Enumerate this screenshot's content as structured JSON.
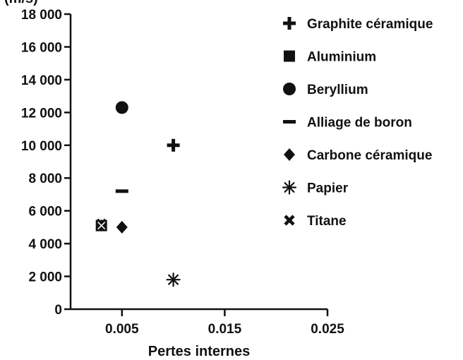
{
  "chart_data": {
    "type": "scatter",
    "title": "",
    "ylabel_fragment": "(m/s)",
    "xlabel": "Pertes internes",
    "xlim": [
      0,
      0.025
    ],
    "ylim": [
      0,
      18000
    ],
    "x_ticks": [
      0.005,
      0.015,
      0.025
    ],
    "x_tick_labels": [
      "0.005",
      "0.015",
      "0.025"
    ],
    "y_ticks": [
      0,
      2000,
      4000,
      6000,
      8000,
      10000,
      12000,
      14000,
      16000,
      18000
    ],
    "y_tick_labels": [
      "0",
      "2 000",
      "4 000",
      "6 000",
      "8 000",
      "10 000",
      "12 000",
      "14 000",
      "16 000",
      "18 000"
    ],
    "legend_position": "right",
    "series": [
      {
        "name": "Graphite céramique",
        "marker": "plus",
        "points": [
          {
            "x": 0.01,
            "y": 10000
          }
        ]
      },
      {
        "name": "Aluminium",
        "marker": "square",
        "points": [
          {
            "x": 0.003,
            "y": 5100
          }
        ]
      },
      {
        "name": "Beryllium",
        "marker": "circle",
        "points": [
          {
            "x": 0.005,
            "y": 12300
          }
        ]
      },
      {
        "name": "Alliage de boron",
        "marker": "dash",
        "points": [
          {
            "x": 0.005,
            "y": 7200
          }
        ]
      },
      {
        "name": "Carbone céramique",
        "marker": "diamond",
        "points": [
          {
            "x": 0.005,
            "y": 5000
          }
        ]
      },
      {
        "name": "Papier",
        "marker": "asterisk",
        "points": [
          {
            "x": 0.01,
            "y": 1800
          }
        ]
      },
      {
        "name": "Titane",
        "marker": "cross",
        "points": [
          {
            "x": 0.003,
            "y": 5200
          }
        ]
      }
    ],
    "colors": {
      "marker": "#111111",
      "axis": "#111111"
    }
  }
}
